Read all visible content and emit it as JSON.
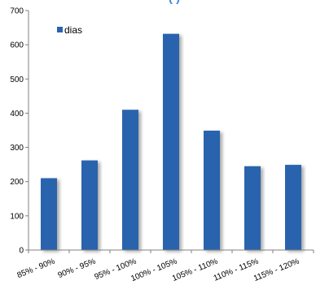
{
  "chart_data": {
    "type": "bar",
    "title": "(          )",
    "categories": [
      "85% - 90%",
      "90% - 95%",
      "95% - 100%",
      "100% - 105%",
      "105% - 110%",
      "110% - 115%",
      "115% - 120%"
    ],
    "series": [
      {
        "name": "dias",
        "values": [
          210,
          262,
          410,
          632,
          349,
          245,
          249
        ],
        "color": "#2a64ad"
      }
    ],
    "ylim": [
      0,
      700
    ],
    "yticks": [
      0,
      100,
      200,
      300,
      400,
      500,
      600,
      700
    ],
    "grid": false,
    "legend": "top-left",
    "title_color": "#3a8be0"
  }
}
